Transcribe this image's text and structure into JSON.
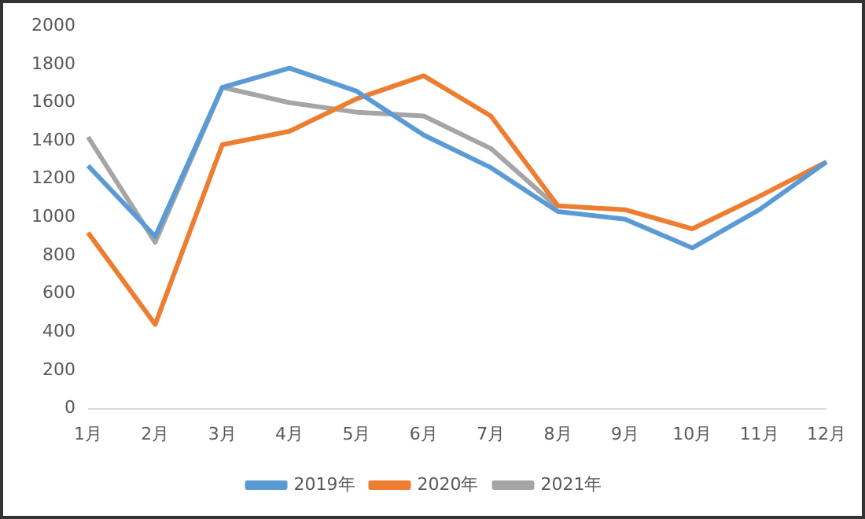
{
  "chart_data": {
    "type": "line",
    "categories": [
      "1月",
      "2月",
      "3月",
      "4月",
      "5月",
      "6月",
      "7月",
      "8月",
      "9月",
      "10月",
      "11月",
      "12月"
    ],
    "series": [
      {
        "name": "2019年",
        "color": "#5b9bd5",
        "values": [
          1270,
          900,
          1680,
          1780,
          1660,
          1430,
          1260,
          1030,
          990,
          840,
          1040,
          1290
        ]
      },
      {
        "name": "2020年",
        "color": "#ed7d31",
        "values": [
          920,
          440,
          1380,
          1450,
          1620,
          1740,
          1530,
          1060,
          1040,
          940,
          1110,
          1290
        ]
      },
      {
        "name": "2021年",
        "color": "#a5a5a5",
        "values": [
          1420,
          870,
          1680,
          1600,
          1550,
          1530,
          1360,
          1050,
          null,
          null,
          null,
          null
        ]
      }
    ],
    "ylim": [
      0,
      2000
    ],
    "yticks": [
      0,
      200,
      400,
      600,
      800,
      1000,
      1200,
      1400,
      1600,
      1800,
      2000
    ],
    "grid": false,
    "legend": "bottom",
    "marker": "none",
    "line_style": "solid"
  }
}
